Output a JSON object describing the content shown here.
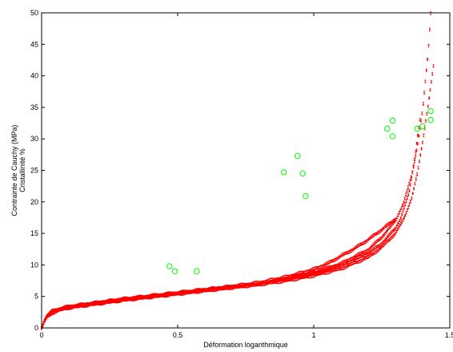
{
  "chart_data": {
    "type": "scatter",
    "xlabel": "Déformation logarithmique",
    "ylabel_lines": [
      "Contrainte de Cauchy (MPa)",
      "Cristallinité %"
    ],
    "xlim": [
      0,
      1.5
    ],
    "ylim": [
      0,
      50
    ],
    "x_ticks": [
      0,
      0.5,
      1,
      1.5
    ],
    "x_tick_labels": [
      "0",
      "0.5",
      "1",
      "1.5"
    ],
    "y_ticks": [
      0,
      5,
      10,
      15,
      20,
      25,
      30,
      35,
      40,
      45,
      50
    ],
    "y_tick_labels": [
      "0",
      "5",
      "10",
      "15",
      "20",
      "25",
      "30",
      "35",
      "40",
      "45",
      "50"
    ],
    "grid": false,
    "colors": {
      "stress": "#ff0000",
      "crystallinity": "#00ff00",
      "axis": "#000000"
    },
    "series": [
      {
        "marker": "dot",
        "curves": [
          {
            "x": [
              0,
              0.01,
              0.02,
              0.04,
              0.07,
              0.1,
              0.15,
              0.2,
              0.3,
              0.4,
              0.5,
              0.6,
              0.7,
              0.8,
              0.9,
              1.0,
              1.05,
              1.1,
              1.15,
              1.2,
              1.25,
              1.28,
              1.3
            ],
            "y": [
              0,
              1.2,
              2.0,
              2.7,
              3.1,
              3.4,
              3.7,
              4.0,
              4.6,
              5.1,
              5.6,
              6.1,
              6.6,
              7.2,
              8.1,
              9.3,
              10.2,
              11.4,
              12.6,
              14.0,
              15.6,
              16.6,
              17.3
            ]
          },
          {
            "x": [
              0,
              0.01,
              0.02,
              0.04,
              0.07,
              0.1,
              0.15,
              0.2,
              0.3,
              0.4,
              0.5,
              0.6,
              0.7,
              0.8,
              0.9,
              1.0,
              1.1,
              1.2,
              1.25,
              1.3,
              1.33,
              1.36,
              1.38,
              1.4,
              1.42,
              1.44
            ],
            "y": [
              0,
              1.0,
              1.7,
              2.4,
              2.9,
              3.2,
              3.5,
              3.8,
              4.4,
              4.9,
              5.4,
              5.9,
              6.4,
              6.9,
              7.5,
              8.3,
              9.4,
              11.2,
              12.8,
              15.0,
              17.2,
              20.6,
              24.3,
              29.5,
              35.2,
              41.5
            ]
          },
          {
            "x": [
              0,
              0.01,
              0.02,
              0.04,
              0.07,
              0.1,
              0.15,
              0.2,
              0.3,
              0.4,
              0.5,
              0.6,
              0.7,
              0.8,
              0.9,
              1.0,
              1.1,
              1.2,
              1.25,
              1.3,
              1.33,
              1.36,
              1.38,
              1.4,
              1.42,
              1.43
            ],
            "y": [
              0,
              1.1,
              1.9,
              2.6,
              3.0,
              3.3,
              3.6,
              3.9,
              4.5,
              5.0,
              5.5,
              6.0,
              6.5,
              7.0,
              7.8,
              8.8,
              10.2,
              12.4,
              14.4,
              17.0,
              19.8,
              24.2,
              28.6,
              34.5,
              43.5,
              50.0
            ]
          },
          {
            "x": [
              0,
              0.01,
              0.02,
              0.04,
              0.07,
              0.1,
              0.15,
              0.2,
              0.3,
              0.4,
              0.5,
              0.6,
              0.7,
              0.8,
              0.9,
              1.0,
              1.1,
              1.2,
              1.25,
              1.3,
              1.32,
              1.35,
              1.37,
              1.39
            ],
            "y": [
              0,
              1.1,
              1.8,
              2.5,
              2.9,
              3.3,
              3.6,
              3.9,
              4.5,
              5.0,
              5.5,
              6.0,
              6.5,
              7.0,
              7.7,
              8.6,
              9.9,
              11.8,
              13.4,
              15.8,
              17.4,
              21.4,
              26.6,
              33.0
            ]
          }
        ]
      },
      {
        "marker": "circle",
        "x": [
          0.47,
          0.49,
          0.57,
          0.89,
          0.94,
          0.96,
          0.97,
          1.27,
          1.29,
          1.29,
          1.38,
          1.4,
          1.43,
          1.43
        ],
        "y": [
          9.8,
          9.0,
          9.0,
          24.7,
          27.3,
          24.5,
          20.9,
          31.6,
          32.9,
          30.4,
          31.6,
          32.0,
          34.4,
          33.0
        ]
      }
    ]
  }
}
